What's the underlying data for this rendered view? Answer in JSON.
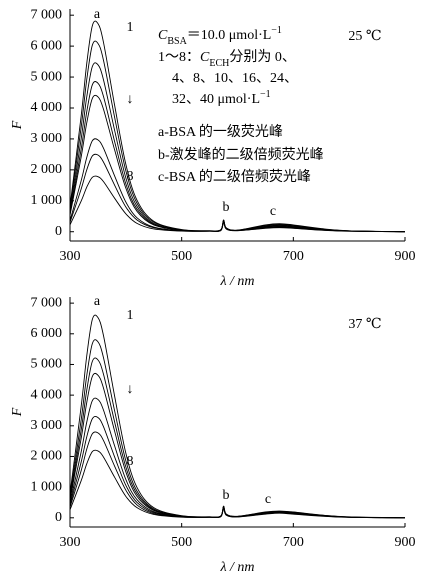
{
  "chart_data": [
    {
      "type": "line",
      "color": "#000000",
      "x": [
        300,
        320,
        330,
        340,
        350,
        360,
        380,
        400,
        420,
        450,
        500,
        550,
        570,
        575,
        580,
        600,
        650,
        675,
        700,
        750,
        800,
        900
      ],
      "xlim": [
        300,
        900
      ],
      "xticks": [
        300,
        500,
        700,
        900
      ],
      "ylim": [
        -300,
        7200
      ],
      "yticks": [
        0,
        {
          "value": 1000,
          "label": "1 000"
        },
        {
          "value": 2000,
          "label": "2 000"
        },
        {
          "value": 3000,
          "label": "3 000"
        },
        {
          "value": 4000,
          "label": "4 000"
        },
        {
          "value": 5000,
          "label": "5 000"
        },
        {
          "value": 6000,
          "label": "6 000"
        },
        {
          "value": 7000,
          "label": "7 000"
        }
      ],
      "x_label": "λ / nm",
      "y_label": "F",
      "labels": [
        "a",
        "1",
        "↓",
        "8",
        "b",
        "c"
      ],
      "temperature": "25 ℃",
      "notes": [
        [
          "C",
          "BSA",
          "＝10.0 μmol·L",
          "−1"
        ],
        [
          "1～8：",
          "C",
          "ECH",
          "分别为 0、"
        ],
        [
          "4、8、10、16、24、"
        ],
        [
          "32、40 μmol·L",
          "−1"
        ],
        [
          "a-BSA 的一级荧光峰"
        ],
        [
          "b-激发峰的二级倍频荧光峰"
        ],
        [
          "c-BSA 的二级倍频荧光峰"
        ]
      ],
      "series": [
        {
          "values": [
            820,
            3740,
            5440,
            6660,
            6730,
            6120,
            4080,
            2180,
            1020,
            340,
            70,
            30,
            60,
            380,
            120,
            50,
            220,
            260,
            220,
            100,
            30,
            0
          ]
        },
        {
          "values": [
            740,
            3380,
            4920,
            6030,
            6090,
            5540,
            3690,
            1970,
            920,
            310,
            60,
            30,
            60,
            370,
            120,
            50,
            200,
            240,
            200,
            90,
            30,
            0
          ]
        },
        {
          "values": [
            650,
            3000,
            4360,
            5340,
            5400,
            4910,
            3270,
            1740,
            820,
            270,
            55,
            30,
            55,
            360,
            110,
            45,
            180,
            220,
            180,
            80,
            25,
            0
          ]
        },
        {
          "values": [
            580,
            2670,
            3880,
            4750,
            4800,
            4370,
            2910,
            1550,
            730,
            240,
            50,
            25,
            50,
            350,
            105,
            45,
            160,
            200,
            170,
            75,
            25,
            0
          ]
        },
        {
          "values": [
            530,
            2420,
            3520,
            4310,
            4360,
            3960,
            2640,
            1410,
            660,
            220,
            45,
            25,
            45,
            340,
            100,
            40,
            150,
            180,
            150,
            70,
            20,
            0
          ]
        },
        {
          "values": [
            360,
            1650,
            2400,
            2940,
            2970,
            2700,
            1800,
            960,
            450,
            150,
            30,
            20,
            40,
            330,
            95,
            40,
            130,
            160,
            140,
            60,
            20,
            0
          ]
        },
        {
          "values": [
            300,
            1380,
            2000,
            2450,
            2480,
            2250,
            1500,
            800,
            380,
            130,
            25,
            20,
            40,
            320,
            90,
            35,
            120,
            150,
            120,
            55,
            20,
            0
          ]
        },
        {
          "values": [
            220,
            990,
            1440,
            1760,
            1780,
            1620,
            1080,
            580,
            270,
            90,
            20,
            15,
            35,
            310,
            85,
            35,
            110,
            130,
            110,
            50,
            15,
            0
          ]
        }
      ]
    },
    {
      "type": "line",
      "color": "#000000",
      "x": [
        300,
        320,
        330,
        340,
        350,
        360,
        380,
        400,
        420,
        450,
        500,
        550,
        570,
        575,
        580,
        600,
        650,
        675,
        700,
        750,
        800,
        900
      ],
      "xlim": [
        300,
        900
      ],
      "xticks": [
        300,
        500,
        700,
        900
      ],
      "ylim": [
        -300,
        7200
      ],
      "yticks": [
        0,
        {
          "value": 1000,
          "label": "1 000"
        },
        {
          "value": 2000,
          "label": "2 000"
        },
        {
          "value": 3000,
          "label": "3 000"
        },
        {
          "value": 4000,
          "label": "4 000"
        },
        {
          "value": 5000,
          "label": "5 000"
        },
        {
          "value": 6000,
          "label": "6 000"
        },
        {
          "value": 7000,
          "label": "7 000"
        }
      ],
      "x_label": "λ / nm",
      "y_label": "F",
      "labels": [
        "a",
        "1",
        "↓",
        "8",
        "b",
        "c"
      ],
      "temperature": "37 ℃",
      "series": [
        {
          "values": [
            790,
            3630,
            5280,
            6470,
            6530,
            5940,
            3960,
            2110,
            990,
            330,
            70,
            30,
            60,
            380,
            120,
            50,
            190,
            220,
            190,
            90,
            30,
            0
          ]
        },
        {
          "values": [
            700,
            3190,
            4640,
            5680,
            5740,
            5220,
            3480,
            1860,
            870,
            290,
            60,
            30,
            55,
            370,
            115,
            45,
            180,
            210,
            180,
            85,
            25,
            0
          ]
        },
        {
          "values": [
            620,
            2860,
            4160,
            5100,
            5150,
            4680,
            3120,
            1660,
            780,
            260,
            50,
            25,
            50,
            360,
            110,
            45,
            170,
            200,
            170,
            80,
            25,
            0
          ]
        },
        {
          "values": [
            560,
            2590,
            3760,
            4610,
            4650,
            4230,
            2820,
            1500,
            700,
            240,
            50,
            25,
            50,
            350,
            105,
            40,
            160,
            190,
            160,
            75,
            20,
            0
          ]
        },
        {
          "values": [
            470,
            2150,
            3120,
            3820,
            3860,
            3510,
            2340,
            1250,
            590,
            200,
            40,
            20,
            45,
            340,
            100,
            40,
            150,
            180,
            150,
            70,
            20,
            0
          ]
        },
        {
          "values": [
            400,
            1820,
            2640,
            3230,
            3270,
            2970,
            1980,
            1060,
            500,
            170,
            35,
            20,
            40,
            330,
            95,
            35,
            140,
            170,
            140,
            65,
            20,
            0
          ]
        },
        {
          "values": [
            340,
            1540,
            2240,
            2740,
            2770,
            2520,
            1680,
            900,
            420,
            140,
            30,
            15,
            40,
            320,
            90,
            35,
            130,
            160,
            130,
            60,
            15,
            0
          ]
        },
        {
          "values": [
            260,
            1210,
            1760,
            2160,
            2180,
            1980,
            1320,
            700,
            330,
            110,
            20,
            15,
            35,
            310,
            85,
            30,
            120,
            150,
            120,
            55,
            15,
            0
          ]
        }
      ]
    }
  ]
}
